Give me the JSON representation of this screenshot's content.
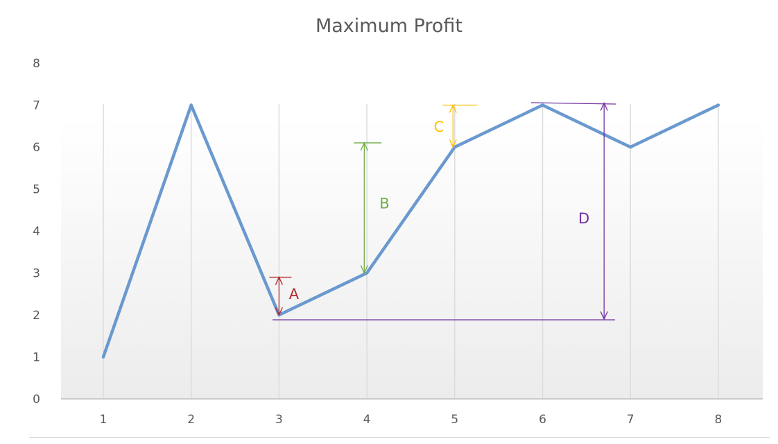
{
  "chart_data": {
    "type": "line",
    "title": "Maximum Profit",
    "xlabel": "",
    "ylabel": "",
    "x": [
      1,
      2,
      3,
      4,
      5,
      6,
      7,
      8
    ],
    "series": [
      {
        "values": [
          1,
          7,
          2,
          3,
          6,
          7,
          6,
          7
        ],
        "color": "#6a99cf"
      }
    ],
    "ylim": [
      0,
      8
    ],
    "yticks": [
      0,
      1,
      2,
      3,
      4,
      5,
      6,
      7,
      8
    ],
    "grid": "vertical",
    "annotations": [
      {
        "label": "A",
        "color": "#b3282d",
        "x": 3,
        "y_from": 2,
        "y_to": 2.9,
        "label_x": 3.17,
        "label_y": 2.5
      },
      {
        "label": "B",
        "color": "#70ad47",
        "x": 3.97,
        "y_from": 3,
        "y_to": 6.1,
        "label_x": 4.2,
        "label_y": 4.65
      },
      {
        "label": "C",
        "color": "#ffc000",
        "x": 4.98,
        "y_from": 6,
        "y_to": 7,
        "label_x": 4.82,
        "label_y": 6.48
      },
      {
        "label": "D",
        "color": "#7030a0",
        "x": 6.7,
        "y_from": 1.9,
        "y_to": 7.05,
        "label_x": 6.47,
        "label_y": 4.3
      }
    ]
  }
}
